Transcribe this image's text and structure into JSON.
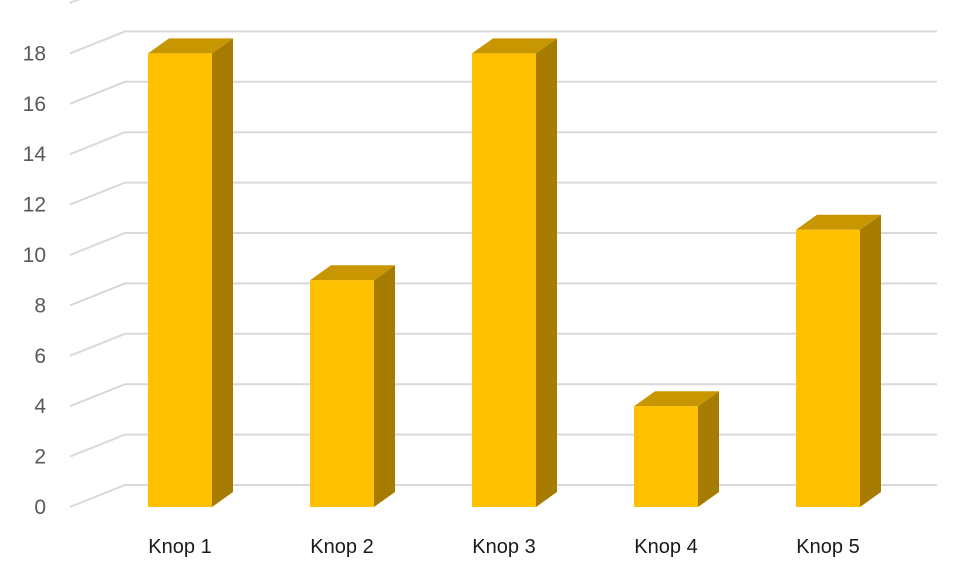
{
  "chart_data": {
    "type": "bar",
    "categories": [
      "Knop 1",
      "Knop 2",
      "Knop 3",
      "Knop 4",
      "Knop 5"
    ],
    "values": [
      18,
      9,
      18,
      4,
      11
    ],
    "yticks": [
      "0",
      "2",
      "4",
      "6",
      "8",
      "10",
      "12",
      "14",
      "16",
      "18"
    ],
    "ylim": [
      0,
      18
    ],
    "grid": true,
    "style_3d": true,
    "colors": {
      "front": "#FFC000",
      "side": "#A67C00",
      "top": "#C89600",
      "grid": "#D9D9D9"
    }
  }
}
